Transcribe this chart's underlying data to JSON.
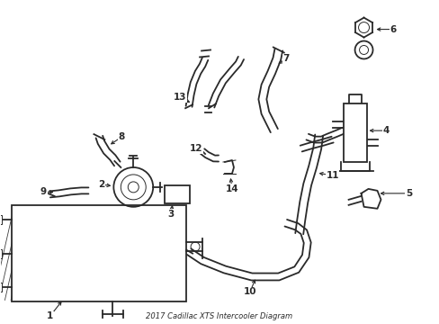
{
  "bg_color": "#ffffff",
  "line_color": "#2a2a2a",
  "lw": 1.3,
  "lw_thin": 0.7,
  "fs": 7.5,
  "title": "2017 Cadillac XTS Intercooler Diagram"
}
